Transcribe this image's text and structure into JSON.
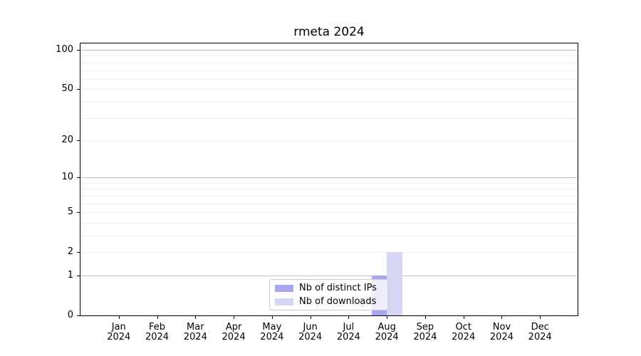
{
  "chart_data": {
    "type": "bar",
    "title": "rmeta 2024",
    "months": [
      "Jan",
      "Feb",
      "Mar",
      "Apr",
      "May",
      "Jun",
      "Jul",
      "Aug",
      "Sep",
      "Oct",
      "Nov",
      "Dec"
    ],
    "year": "2024",
    "series": [
      {
        "name": "Nb of distinct IPs",
        "color": "#a7a7ee",
        "values": [
          0,
          0,
          0,
          0,
          0,
          0,
          0,
          1,
          0,
          0,
          0,
          0
        ]
      },
      {
        "name": "Nb of downloads",
        "color": "#d5d5f4",
        "values": [
          0,
          0,
          0,
          0,
          0,
          0,
          0,
          2,
          0,
          0,
          0,
          0
        ]
      }
    ],
    "y_axis": {
      "scale": "log1p",
      "tick_values": [
        0,
        1,
        2,
        5,
        10,
        20,
        50,
        100
      ],
      "major_gridlines": [
        1,
        10,
        100
      ],
      "minor_gridlines": [
        2,
        3,
        4,
        5,
        6,
        7,
        8,
        9,
        20,
        30,
        40,
        50,
        60,
        70,
        80,
        90
      ],
      "max": 112
    },
    "legend": {
      "position": "lower center"
    },
    "grid": true
  }
}
